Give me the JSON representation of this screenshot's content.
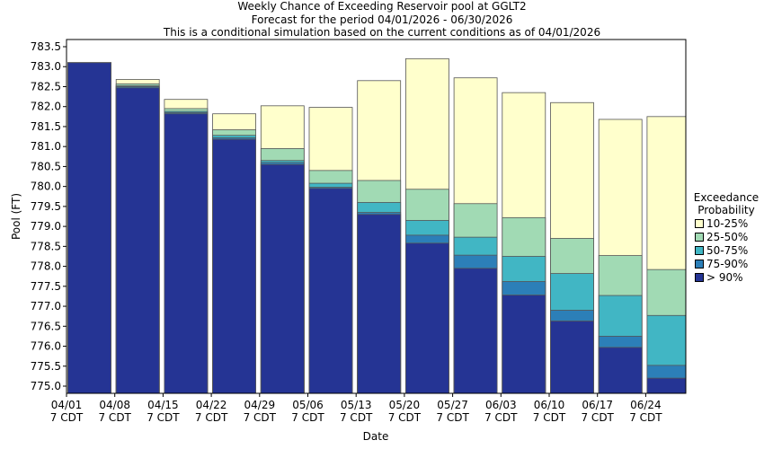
{
  "chart_data": {
    "type": "bar",
    "title": "Weekly Chance of Exceeding Reservoir pool at GGLT2",
    "subtitle": "Forecast for the period 04/01/2026 - 06/30/2026",
    "note": "This is a conditional simulation based on the current conditions as of 04/01/2026",
    "x_label": "Date",
    "y_label": "Pool (FT)",
    "legend_title": "Exceedance Probability",
    "categories": [
      "04/01",
      "04/08",
      "04/15",
      "04/22",
      "04/29",
      "05/06",
      "05/13",
      "05/20",
      "05/27",
      "06/03",
      "06/10",
      "06/17",
      "06/24"
    ],
    "category_sublabels": [
      "7 CDT",
      "7 CDT",
      "7 CDT",
      "7 CDT",
      "7 CDT",
      "7 CDT",
      "7 CDT",
      "7 CDT",
      "7 CDT",
      "7 CDT",
      "7 CDT",
      "7 CDT",
      "7 CDT"
    ],
    "series": [
      {
        "name": "10-25%",
        "color": "#ffffcc",
        "values": [
          783.1,
          782.68,
          782.18,
          781.82,
          782.02,
          781.98,
          782.65,
          783.2,
          782.72,
          782.35,
          782.1,
          781.68,
          781.75
        ]
      },
      {
        "name": "25-50%",
        "color": "#a1dab4",
        "values": [
          783.1,
          782.57,
          781.95,
          781.42,
          780.95,
          780.4,
          780.15,
          779.93,
          779.57,
          779.22,
          778.7,
          778.27,
          777.92
        ]
      },
      {
        "name": "50-75%",
        "color": "#41b6c4",
        "values": [
          783.1,
          782.52,
          781.88,
          781.28,
          780.65,
          780.08,
          779.6,
          779.15,
          778.73,
          778.25,
          777.82,
          777.27,
          776.77
        ]
      },
      {
        "name": "75-90%",
        "color": "#2c7fb8",
        "values": [
          783.1,
          782.5,
          781.85,
          781.22,
          780.6,
          779.98,
          779.35,
          778.78,
          778.28,
          777.62,
          776.9,
          776.25,
          775.52
        ]
      },
      {
        "name": "> 90%",
        "color": "#253494",
        "values": [
          783.1,
          782.47,
          781.82,
          781.18,
          780.55,
          779.95,
          779.3,
          778.58,
          777.95,
          777.28,
          776.63,
          775.97,
          775.2
        ]
      }
    ],
    "ylim": [
      774.82,
      783.68
    ],
    "yticks": [
      {
        "value": 775,
        "label": "775.0"
      },
      {
        "value": 775.5,
        "label": "775.5"
      },
      {
        "value": 776,
        "label": "776.0"
      },
      {
        "value": 776.5,
        "label": "776.5"
      },
      {
        "value": 777,
        "label": "777.0"
      },
      {
        "value": 777.5,
        "label": "777.5"
      },
      {
        "value": 778,
        "label": "778.0"
      },
      {
        "value": 778.5,
        "label": "778.5"
      },
      {
        "value": 779,
        "label": "779.0"
      },
      {
        "value": 779.5,
        "label": "779.5"
      },
      {
        "value": 780,
        "label": "780.0"
      },
      {
        "value": 780.5,
        "label": "780.5"
      },
      {
        "value": 781,
        "label": "781.0"
      },
      {
        "value": 781.5,
        "label": "781.5"
      },
      {
        "value": 782,
        "label": "782.0"
      },
      {
        "value": 782.5,
        "label": "782.5"
      },
      {
        "value": 783,
        "label": "783.0"
      },
      {
        "value": 783.5,
        "label": "783.5"
      }
    ]
  }
}
